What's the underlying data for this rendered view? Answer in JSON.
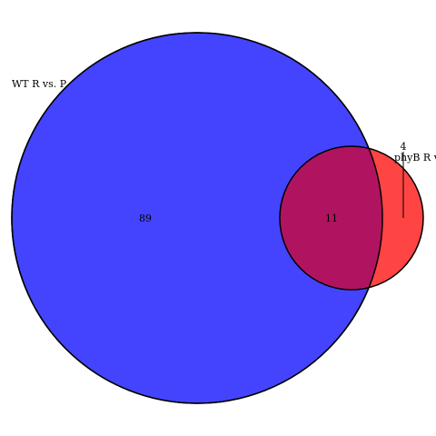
{
  "diagram": {
    "type": "venn",
    "sets": [
      {
        "name": "WT R vs. P",
        "color": "#4444ff"
      },
      {
        "name": "phyB R vs. P",
        "color": "#ff4444"
      }
    ],
    "regions": {
      "only_set_1": "89",
      "intersection": "11",
      "only_set_2": "4"
    },
    "overlap_color": "#b01460",
    "outline_color": "#000000"
  }
}
